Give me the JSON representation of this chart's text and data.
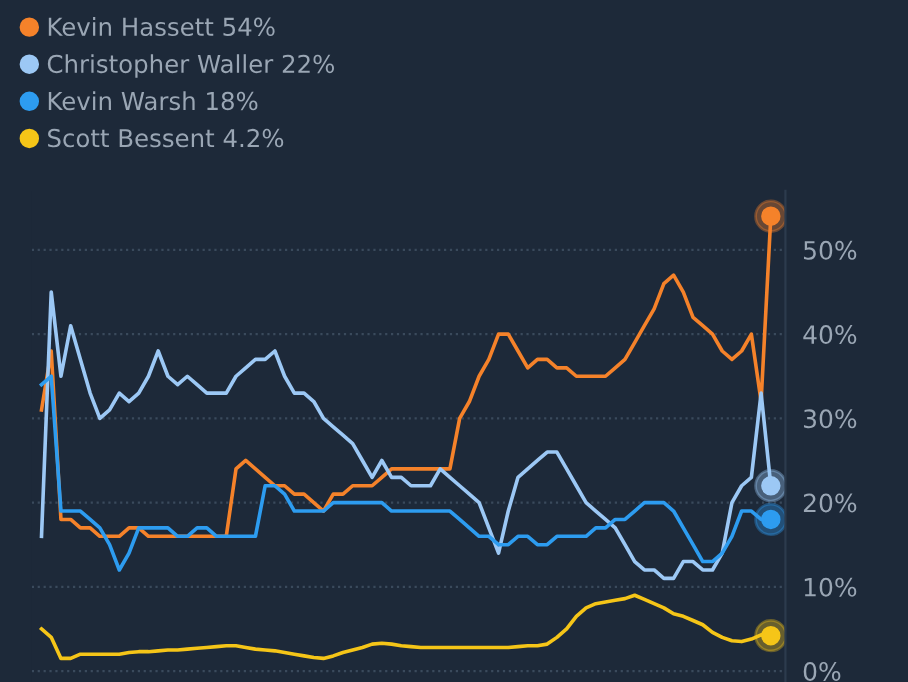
{
  "chart_data": {
    "type": "line",
    "categories": [
      null,
      null,
      null,
      null,
      null,
      null,
      null,
      null,
      null,
      null,
      null,
      null,
      null,
      null,
      null,
      null,
      null,
      null,
      null,
      null,
      null,
      null,
      null,
      null,
      null,
      null,
      null,
      null,
      null,
      null,
      null,
      null,
      null,
      null,
      null,
      null,
      null,
      null,
      null,
      null,
      null,
      null,
      null,
      null,
      null,
      null,
      null,
      null,
      null,
      null,
      null,
      null,
      null,
      null,
      null,
      null,
      null,
      null,
      null,
      null,
      null,
      null,
      null,
      null,
      null,
      null,
      null,
      null,
      null,
      null,
      null,
      null,
      null,
      null,
      null,
      null
    ],
    "series": [
      {
        "name": "Kevin Hassett 54%",
        "color": "#f5822a",
        "values": [
          31,
          38,
          18,
          18,
          17,
          17,
          16,
          16,
          16,
          17,
          17,
          16,
          16,
          16,
          16,
          16,
          16,
          16,
          16,
          16,
          24,
          25,
          24,
          23,
          22,
          22,
          21,
          21,
          20,
          19,
          21,
          21,
          22,
          22,
          22,
          23,
          24,
          24,
          24,
          24,
          24,
          24,
          24,
          30,
          32,
          35,
          37,
          40,
          40,
          38,
          36,
          37,
          37,
          36,
          36,
          35,
          35,
          35,
          35,
          36,
          37,
          39,
          41,
          43,
          46,
          47,
          45,
          42,
          41,
          40,
          38,
          37,
          38,
          40,
          32,
          54
        ]
      },
      {
        "name": "Christopher Waller 22%",
        "color": "#9cc8f5",
        "values": [
          16,
          45,
          35,
          41,
          37,
          33,
          30,
          31,
          33,
          32,
          33,
          35,
          38,
          35,
          34,
          35,
          34,
          33,
          33,
          33,
          35,
          36,
          37,
          37,
          38,
          35,
          33,
          33,
          32,
          30,
          29,
          28,
          27,
          25,
          23,
          25,
          23,
          23,
          22,
          22,
          22,
          24,
          23,
          22,
          21,
          20,
          17,
          14,
          19,
          23,
          24,
          25,
          26,
          26,
          24,
          22,
          20,
          19,
          18,
          17,
          15,
          13,
          12,
          12,
          11,
          11,
          13,
          13,
          12,
          12,
          14,
          20,
          22,
          23,
          33,
          22
        ]
      },
      {
        "name": "Kevin Warsh 18%",
        "color": "#2d9cf0",
        "values": [
          34,
          35,
          19,
          19,
          19,
          18,
          17,
          15,
          12,
          14,
          17,
          17,
          17,
          17,
          16,
          16,
          17,
          17,
          16,
          16,
          16,
          16,
          16,
          22,
          22,
          21,
          19,
          19,
          19,
          19,
          20,
          20,
          20,
          20,
          20,
          20,
          19,
          19,
          19,
          19,
          19,
          19,
          19,
          18,
          17,
          16,
          16,
          15,
          15,
          16,
          16,
          15,
          15,
          16,
          16,
          16,
          16,
          17,
          17,
          18,
          18,
          19,
          20,
          20,
          20,
          19,
          17,
          15,
          13,
          13,
          14,
          16,
          19,
          19,
          18,
          18
        ]
      },
      {
        "name": "Scott Bessent 4.2%",
        "color": "#f5c518",
        "values": [
          5,
          4,
          1.5,
          1.5,
          2,
          2,
          2,
          2,
          2,
          2.2,
          2.3,
          2.3,
          2.4,
          2.5,
          2.5,
          2.6,
          2.7,
          2.8,
          2.9,
          3,
          3,
          2.8,
          2.6,
          2.5,
          2.4,
          2.2,
          2,
          1.8,
          1.6,
          1.5,
          1.8,
          2.2,
          2.5,
          2.8,
          3.2,
          3.3,
          3.2,
          3,
          2.9,
          2.8,
          2.8,
          2.8,
          2.8,
          2.8,
          2.8,
          2.8,
          2.8,
          2.8,
          2.8,
          2.9,
          3,
          3,
          3.2,
          4,
          5,
          6.5,
          7.5,
          8,
          8.2,
          8.4,
          8.6,
          9,
          8.5,
          8,
          7.5,
          6.8,
          6.5,
          6,
          5.5,
          4.6,
          4,
          3.6,
          3.5,
          3.8,
          4.3,
          4.2
        ]
      }
    ],
    "ylim": [
      -1.3,
      57
    ],
    "yticks": [
      {
        "value": 0,
        "label": "0%"
      },
      {
        "value": 10,
        "label": "10%"
      },
      {
        "value": 20,
        "label": "20%"
      },
      {
        "value": 30,
        "label": "30%"
      },
      {
        "value": 40,
        "label": "40%"
      },
      {
        "value": 50,
        "label": "50%"
      }
    ],
    "grid": "y",
    "legend": "top left",
    "line_style": "solid",
    "tick_labels": "y"
  }
}
